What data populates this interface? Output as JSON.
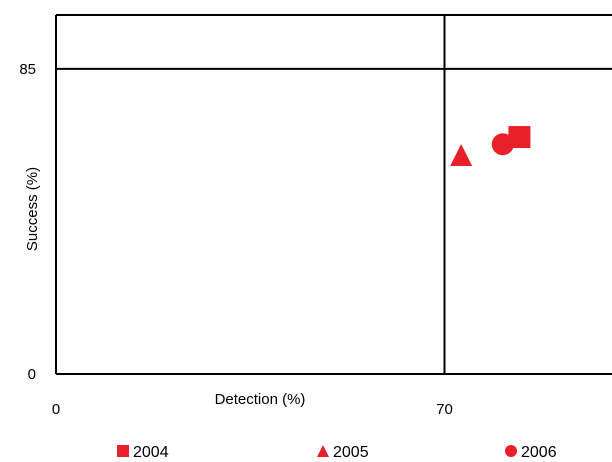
{
  "chart_data": {
    "type": "scatter",
    "title": "",
    "xlabel": "Detection (%)",
    "ylabel": "Success (%)",
    "xlim": [
      0,
      100
    ],
    "ylim": [
      0,
      100
    ],
    "x_tick_labels": [
      {
        "value": 0,
        "label": "0"
      },
      {
        "value": 70,
        "label": "70"
      }
    ],
    "y_tick_labels": [
      {
        "value": 0,
        "label": "0"
      },
      {
        "value": 85,
        "label": "85"
      }
    ],
    "reference_lines": {
      "x": 70,
      "y": 85
    },
    "grid": false,
    "legend_position": "bottom",
    "marker_color": "#e8202a",
    "series": [
      {
        "name": "2004",
        "marker": "square",
        "x": [
          83.5
        ],
        "y": [
          66
        ]
      },
      {
        "name": "2005",
        "marker": "triangle",
        "x": [
          73
        ],
        "y": [
          61
        ]
      },
      {
        "name": "2006",
        "marker": "circle",
        "x": [
          80.5
        ],
        "y": [
          64
        ]
      }
    ]
  }
}
